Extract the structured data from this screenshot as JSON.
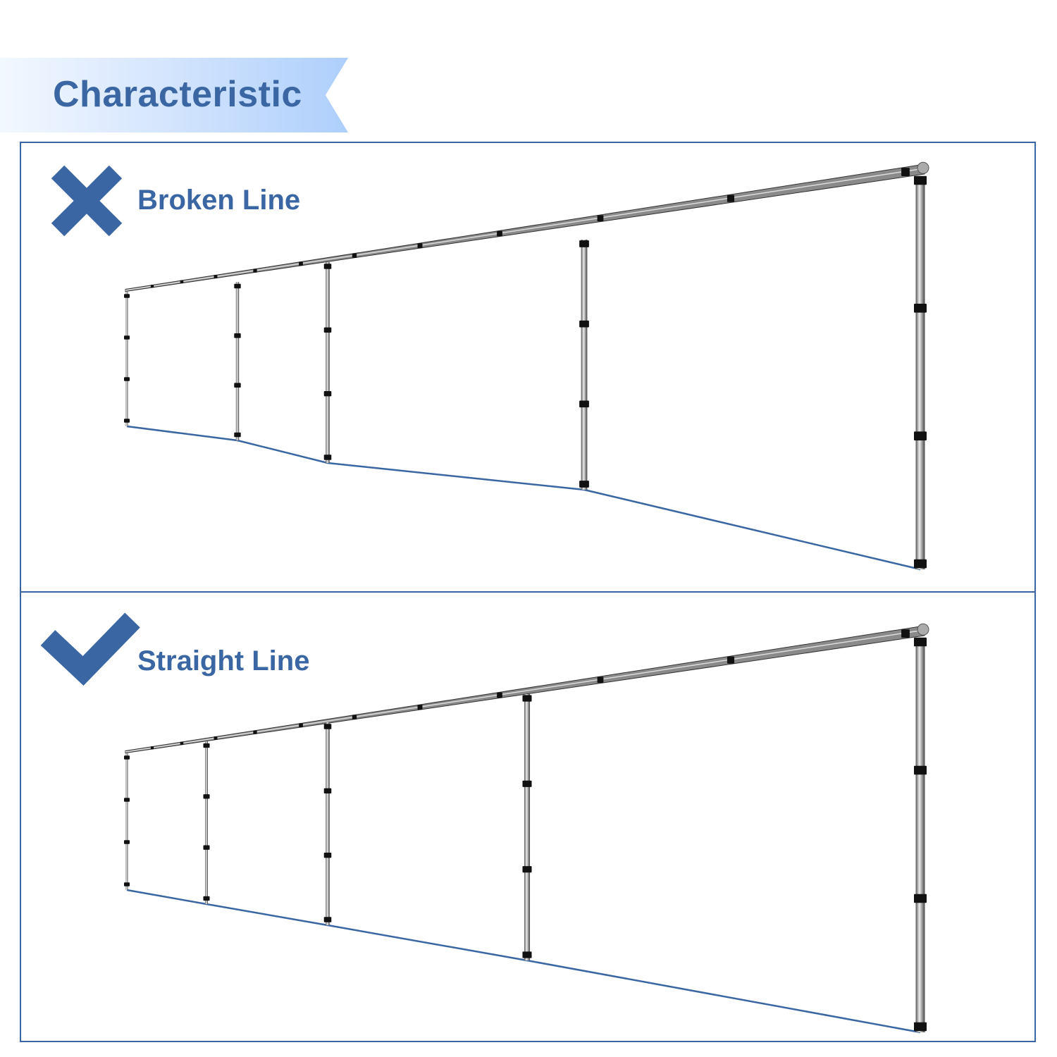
{
  "header": {
    "title": "Characteristic"
  },
  "panels": [
    {
      "label": "Broken Line",
      "icon": "cross-icon",
      "verdict": "wrong"
    },
    {
      "label": "Straight Line",
      "icon": "check-icon",
      "verdict": "correct"
    }
  ],
  "colors": {
    "accent": "#3a67a3",
    "banner_light": "#f3f8ff",
    "banner_dark": "#aecffc",
    "clamp": "#111111",
    "pipe": "#9a9a9a"
  }
}
